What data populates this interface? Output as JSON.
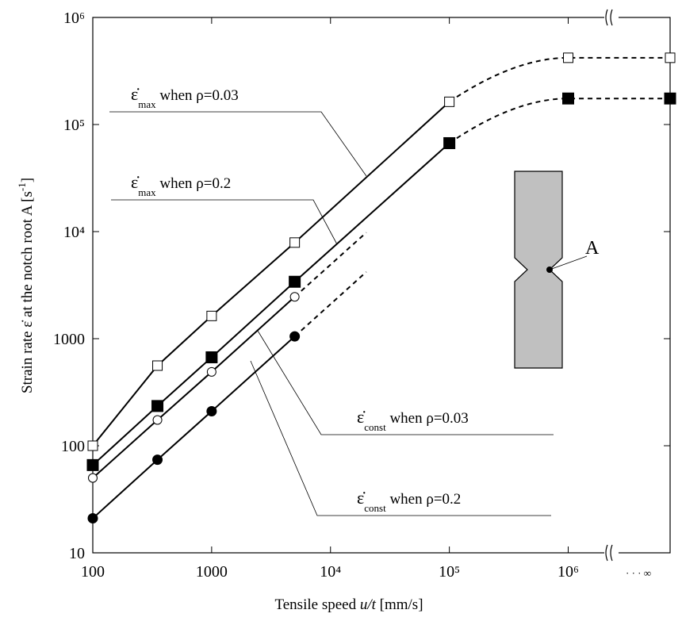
{
  "chart_data": {
    "type": "scatter",
    "xlabel": "Tensile speed ",
    "xlabel_italic": "u/t",
    "xlabel_end": " [mm/s]",
    "ylabel": "Strain rate ε̇ at the notch root A [s",
    "ylabel_sup": "-1",
    "ylabel_end": "]",
    "log_x": true,
    "log_y": true,
    "xlim": [
      100,
      7200000
    ],
    "ylim": [
      10,
      1000000
    ],
    "xticks": [
      100,
      1000,
      {
        "value": 10000,
        "label": "10⁴"
      },
      {
        "value": 100000,
        "label": "10⁵"
      },
      {
        "value": 1000000,
        "label": "10⁶"
      },
      {
        "value": 7200000,
        "label": "· · · ∞"
      }
    ],
    "yticks": [
      10,
      100,
      1000,
      {
        "value": 10000,
        "label": "10⁴"
      },
      {
        "value": 100000,
        "label": "10⁵"
      },
      {
        "value": 1000000,
        "label": "10⁶"
      }
    ],
    "series": [
      {
        "marker": "square",
        "filled": false,
        "color": "#000",
        "x": [
          100,
          350,
          1000,
          5000,
          100000,
          1000000,
          7200000
        ],
        "values": [
          100,
          560,
          1630,
          7900,
          163000,
          420000,
          420000
        ],
        "dashed_from": 4
      },
      {
        "marker": "square",
        "filled": true,
        "color": "#000",
        "x": [
          100,
          350,
          1000,
          5000,
          100000,
          1000000,
          7200000
        ],
        "values": [
          66,
          235,
          670,
          3400,
          67000,
          175000,
          175000
        ],
        "dashed_from": 4
      },
      {
        "marker": "circle",
        "filled": false,
        "color": "#000",
        "x": [
          100,
          350,
          1000,
          5000
        ],
        "values": [
          50,
          174,
          490,
          2460
        ],
        "extension_x": [
          5000,
          20000
        ],
        "extension_values": [
          2460,
          9800
        ]
      },
      {
        "marker": "circle",
        "filled": true,
        "color": "#000",
        "x": [
          100,
          350,
          1000,
          5000
        ],
        "values": [
          21,
          74,
          210,
          1050
        ],
        "extension_x": [
          5000,
          20000
        ],
        "extension_values": [
          1050,
          4200
        ]
      }
    ],
    "annotations": [
      {
        "symbol": "ε̇",
        "sub": "max",
        "text": " when ρ=0.03"
      },
      {
        "symbol": "ε̇",
        "sub": "max",
        "text": " when ρ=0.2"
      },
      {
        "symbol": "ε̇",
        "sub": "const",
        "text": " when ρ=0.03"
      },
      {
        "symbol": "ε̇",
        "sub": "const",
        "text": " when ρ=0.2"
      }
    ],
    "specimen_label": "A"
  }
}
